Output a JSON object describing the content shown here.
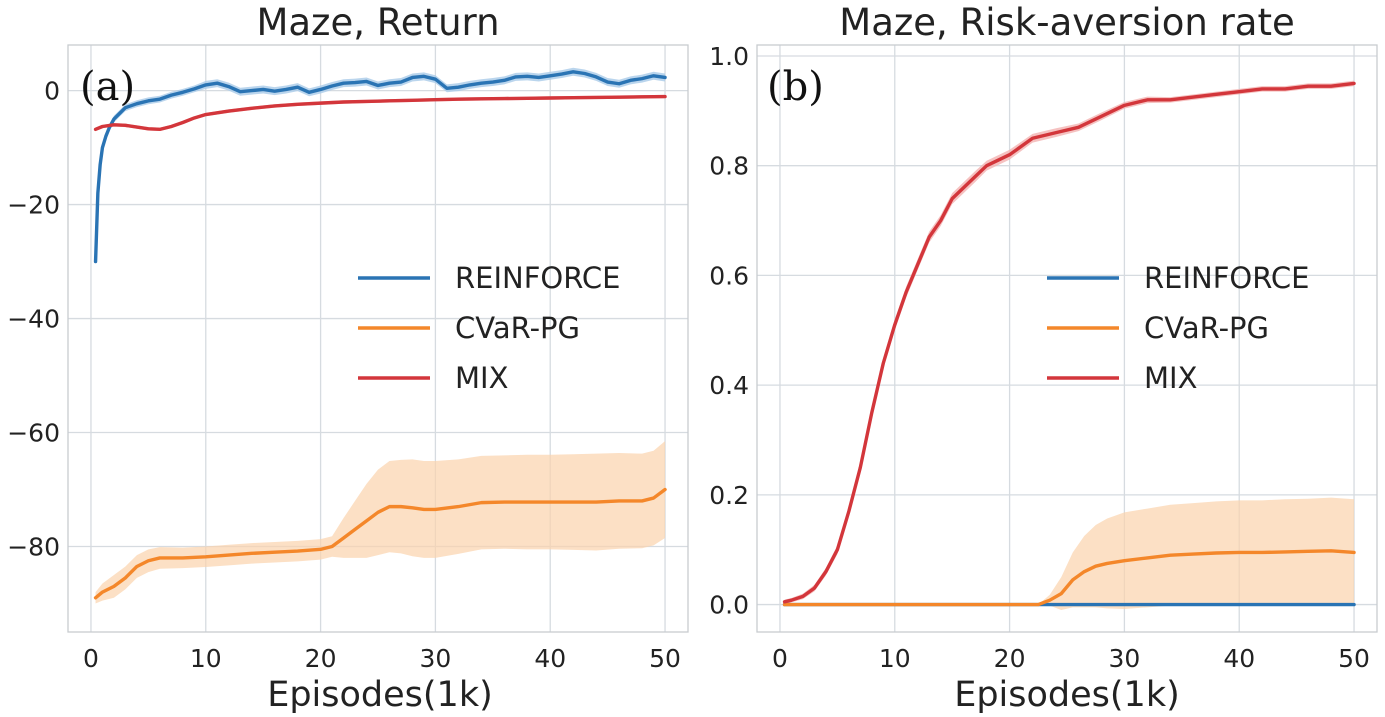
{
  "colors": {
    "reinforce": "#2a74b4",
    "cvar": "#f4872a",
    "cvar_band": "#fbd3ad",
    "mix": "#d3363b",
    "mix_band": "#f3b3b1",
    "reinforce_band": "#a9cbe8"
  },
  "chart_data": [
    {
      "type": "line",
      "panel_label": "(a)",
      "title": "Maze, Return",
      "xlabel": "Episodes(1k)",
      "ylabel": "",
      "xlim": [
        -2,
        52
      ],
      "ylim": [
        -95,
        8
      ],
      "xticks": [
        0,
        10,
        20,
        30,
        40,
        50
      ],
      "yticks": [
        0,
        -20,
        -40,
        -60,
        -80
      ],
      "grid": true,
      "legend_position": "center-right",
      "legend": [
        "REINFORCE",
        "CVaR-PG",
        "MIX"
      ],
      "series": [
        {
          "name": "REINFORCE",
          "x": [
            0.4,
            0.6,
            0.8,
            1.0,
            1.3,
            1.6,
            2.0,
            2.5,
            3,
            4,
            5,
            6,
            7,
            8,
            9,
            10,
            11,
            12,
            13,
            14,
            15,
            16,
            17,
            18,
            19,
            20,
            21,
            22,
            23,
            24,
            25,
            26,
            27,
            28,
            29,
            30,
            31,
            32,
            33,
            34,
            35,
            36,
            37,
            38,
            39,
            40,
            41,
            42,
            43,
            44,
            45,
            46,
            47,
            48,
            49,
            50
          ],
          "y": [
            -30,
            -18,
            -13,
            -10,
            -8,
            -6.5,
            -5,
            -4,
            -3,
            -2.3,
            -1.8,
            -1.5,
            -0.8,
            -0.3,
            0.3,
            1.0,
            1.3,
            0.7,
            -0.2,
            0,
            0.2,
            -0.1,
            0.2,
            0.6,
            -0.3,
            0.2,
            0.8,
            1.3,
            1.4,
            1.6,
            0.9,
            1.3,
            1.5,
            2.3,
            2.5,
            2.0,
            0.4,
            0.6,
            1.0,
            1.3,
            1.5,
            1.8,
            2.4,
            2.5,
            2.3,
            2.6,
            2.9,
            3.3,
            3.0,
            2.4,
            1.5,
            1.2,
            1.8,
            2.1,
            2.6,
            2.3
          ],
          "band": [
            0.6,
            0.6,
            0.6,
            0.6,
            0.6,
            0.6,
            0.6,
            0.6,
            0.6,
            0.6,
            0.6,
            0.6,
            0.6,
            0.6,
            0.6,
            0.7,
            0.7,
            0.7,
            0.7,
            0.7,
            0.7,
            0.7,
            0.7,
            0.7,
            0.7,
            0.7,
            0.7,
            0.7,
            0.7,
            0.7,
            0.7,
            0.7,
            0.7,
            0.7,
            0.7,
            0.7,
            0.7,
            0.7,
            0.7,
            0.7,
            0.7,
            0.7,
            0.7,
            0.7,
            0.7,
            0.7,
            0.7,
            0.7,
            0.7,
            0.7,
            0.7,
            0.7,
            0.7,
            0.7,
            0.7,
            0.7
          ]
        },
        {
          "name": "CVaR-PG",
          "x": [
            0.4,
            1,
            2,
            3,
            4,
            5,
            6,
            8,
            10,
            12,
            14,
            16,
            18,
            20,
            21,
            22,
            23,
            24,
            25,
            26,
            27,
            28,
            29,
            30,
            32,
            34,
            36,
            38,
            40,
            42,
            44,
            46,
            48,
            49,
            50
          ],
          "y": [
            -89,
            -88,
            -87,
            -85.5,
            -83.5,
            -82.5,
            -82,
            -82,
            -81.8,
            -81.5,
            -81.2,
            -81,
            -80.8,
            -80.5,
            -80,
            -78.5,
            -77,
            -75.5,
            -74,
            -73,
            -73,
            -73.2,
            -73.5,
            -73.5,
            -73,
            -72.3,
            -72.2,
            -72.2,
            -72.2,
            -72.2,
            -72.2,
            -72,
            -72,
            -71.5,
            -70
          ],
          "band": [
            1.0,
            1.5,
            2.0,
            2.0,
            2.0,
            2.0,
            1.9,
            1.8,
            1.8,
            1.8,
            1.8,
            1.8,
            1.8,
            1.8,
            1.8,
            3.5,
            5.0,
            6.5,
            7.5,
            8.0,
            8.2,
            8.5,
            8.5,
            8.5,
            8.3,
            8.2,
            8.2,
            8.3,
            8.3,
            8.4,
            8.5,
            8.4,
            8.3,
            8.3,
            8.5
          ]
        },
        {
          "name": "MIX",
          "x": [
            0.4,
            1,
            2,
            3,
            4,
            5,
            6,
            7,
            8,
            9,
            10,
            12,
            14,
            16,
            18,
            20,
            22,
            24,
            26,
            28,
            30,
            32,
            34,
            36,
            38,
            40,
            42,
            44,
            46,
            48,
            50
          ],
          "y": [
            -6.8,
            -6.3,
            -6.0,
            -6.1,
            -6.4,
            -6.7,
            -6.8,
            -6.3,
            -5.6,
            -4.8,
            -4.2,
            -3.6,
            -3.1,
            -2.7,
            -2.4,
            -2.2,
            -2.0,
            -1.9,
            -1.8,
            -1.7,
            -1.6,
            -1.5,
            -1.45,
            -1.4,
            -1.35,
            -1.3,
            -1.25,
            -1.2,
            -1.15,
            -1.1,
            -1.05
          ],
          "band": [
            0.3,
            0.3,
            0.3,
            0.3,
            0.3,
            0.3,
            0.3,
            0.3,
            0.3,
            0.3,
            0.3,
            0.3,
            0.3,
            0.3,
            0.3,
            0.3,
            0.3,
            0.3,
            0.3,
            0.3,
            0.3,
            0.3,
            0.3,
            0.3,
            0.3,
            0.3,
            0.3,
            0.3,
            0.3,
            0.3,
            0.3
          ]
        }
      ]
    },
    {
      "type": "line",
      "panel_label": "(b)",
      "title": "Maze, Risk-aversion rate",
      "xlabel": "Episodes(1k)",
      "ylabel": "",
      "xlim": [
        -2,
        52
      ],
      "ylim": [
        -0.05,
        1.02
      ],
      "xticks": [
        0,
        10,
        20,
        30,
        40,
        50
      ],
      "yticks": [
        0.0,
        0.2,
        0.4,
        0.6,
        0.8,
        1.0
      ],
      "ytick_labels": [
        "0.0",
        "0.2",
        "0.4",
        "0.6",
        "0.8",
        "1.0"
      ],
      "grid": true,
      "legend_position": "center-right",
      "legend": [
        "REINFORCE",
        "CVaR-PG",
        "MIX"
      ],
      "series": [
        {
          "name": "REINFORCE",
          "x": [
            0.4,
            50
          ],
          "y": [
            0.0,
            0.0
          ],
          "band": [
            0,
            0
          ]
        },
        {
          "name": "CVaR-PG",
          "x": [
            0.4,
            5,
            10,
            15,
            20,
            22.5,
            23.5,
            24.5,
            25.5,
            26.5,
            27.5,
            28.5,
            30,
            32,
            34,
            36,
            38,
            40,
            42,
            44,
            46,
            48,
            50
          ],
          "y": [
            0.0,
            0.0,
            0.0,
            0.0,
            0.0,
            0.0,
            0.008,
            0.02,
            0.045,
            0.06,
            0.07,
            0.075,
            0.08,
            0.085,
            0.09,
            0.092,
            0.094,
            0.095,
            0.095,
            0.096,
            0.097,
            0.098,
            0.095
          ],
          "band": [
            0,
            0,
            0,
            0,
            0,
            0,
            0.01,
            0.03,
            0.05,
            0.065,
            0.075,
            0.082,
            0.088,
            0.09,
            0.092,
            0.093,
            0.094,
            0.095,
            0.095,
            0.096,
            0.096,
            0.097,
            0.097
          ]
        },
        {
          "name": "MIX",
          "x": [
            0.4,
            1,
            2,
            3,
            4,
            5,
            6,
            7,
            8,
            9,
            10,
            11,
            12,
            13,
            14,
            15,
            16,
            17,
            18,
            19,
            20,
            22,
            24,
            26,
            28,
            30,
            32,
            34,
            36,
            38,
            40,
            42,
            44,
            46,
            48,
            50
          ],
          "y": [
            0.005,
            0.008,
            0.015,
            0.03,
            0.06,
            0.1,
            0.17,
            0.25,
            0.35,
            0.44,
            0.51,
            0.57,
            0.62,
            0.67,
            0.7,
            0.74,
            0.76,
            0.78,
            0.8,
            0.81,
            0.82,
            0.85,
            0.86,
            0.87,
            0.89,
            0.91,
            0.92,
            0.92,
            0.925,
            0.93,
            0.935,
            0.94,
            0.94,
            0.945,
            0.945,
            0.95
          ],
          "band": [
            0.004,
            0.004,
            0.005,
            0.006,
            0.007,
            0.008,
            0.009,
            0.01,
            0.01,
            0.01,
            0.01,
            0.01,
            0.01,
            0.01,
            0.01,
            0.01,
            0.01,
            0.01,
            0.009,
            0.009,
            0.009,
            0.008,
            0.008,
            0.007,
            0.007,
            0.006,
            0.006,
            0.005,
            0.005,
            0.005,
            0.005,
            0.005,
            0.005,
            0.005,
            0.005,
            0.005
          ]
        }
      ]
    }
  ]
}
